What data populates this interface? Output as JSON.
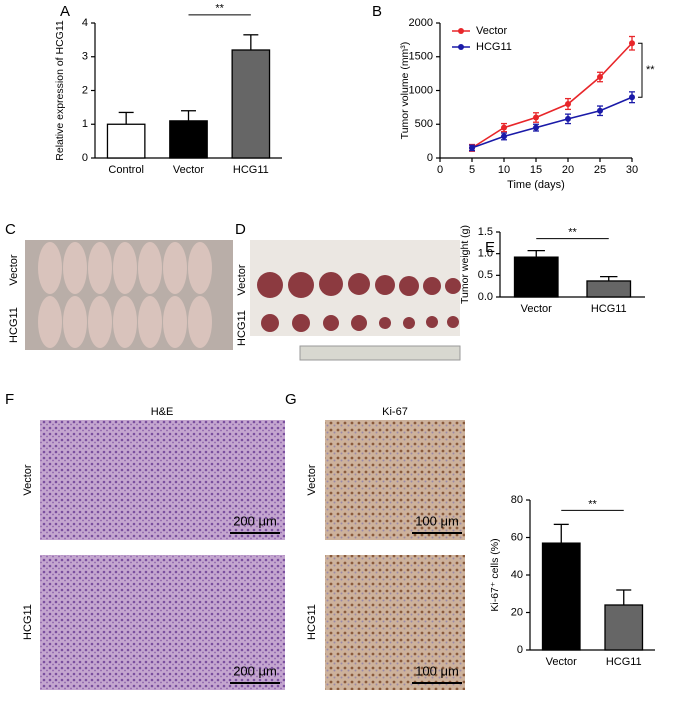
{
  "chart_data": [
    {
      "panel": "A",
      "type": "bar",
      "ylabel": "Relative expression of HCG11",
      "categories": [
        "Control",
        "Vector",
        "HCG11"
      ],
      "values": [
        1.0,
        1.1,
        3.2
      ],
      "errors": [
        0.35,
        0.3,
        0.45
      ],
      "colors": [
        "#ffffff",
        "#000000",
        "#666666"
      ],
      "ylim": [
        0,
        4
      ],
      "yticks": [
        0,
        1,
        2,
        3,
        4
      ],
      "annotation": "**"
    },
    {
      "panel": "B",
      "type": "line",
      "xlabel": "Time (days)",
      "ylabel": "Tumor volume (mm³)",
      "x": [
        5,
        10,
        15,
        20,
        25,
        30
      ],
      "series": [
        {
          "name": "Vector",
          "color": "#e8262a",
          "values": [
            150,
            450,
            600,
            800,
            1200,
            1700
          ],
          "errors": [
            50,
            60,
            70,
            80,
            70,
            100
          ]
        },
        {
          "name": "HCG11",
          "color": "#1a1aa8",
          "values": [
            150,
            320,
            450,
            580,
            700,
            900
          ],
          "errors": [
            40,
            50,
            50,
            70,
            70,
            80
          ]
        }
      ],
      "xlim": [
        0,
        30
      ],
      "xticks": [
        0,
        5,
        10,
        15,
        20,
        25,
        30
      ],
      "ylim": [
        0,
        2000
      ],
      "yticks": [
        0,
        500,
        1000,
        1500,
        2000
      ],
      "legend": "upper left",
      "annotation": "**"
    },
    {
      "panel": "E",
      "type": "bar",
      "ylabel": "Tumor weight (g)",
      "categories": [
        "Vector",
        "HCG11"
      ],
      "values": [
        0.92,
        0.37
      ],
      "errors": [
        0.15,
        0.1
      ],
      "colors": [
        "#000000",
        "#666666"
      ],
      "ylim": [
        0,
        1.5
      ],
      "yticks": [
        {
          "value": 0,
          "label": "0.0"
        },
        0.5,
        {
          "value": 1,
          "label": "1.0"
        },
        1.5
      ],
      "annotation": "**"
    },
    {
      "panel": "G",
      "type": "bar",
      "ylabel": "Ki-67⁺ cells (%)",
      "categories": [
        "Vector",
        "HCG11"
      ],
      "values": [
        57,
        24
      ],
      "errors": [
        10,
        8
      ],
      "colors": [
        "#000000",
        "#666666"
      ],
      "ylim": [
        0,
        80
      ],
      "yticks": [
        0,
        20,
        40,
        60,
        80
      ],
      "annotation": "**"
    }
  ],
  "photos": {
    "C": {
      "panel": "C",
      "rows": [
        "Vector",
        "HCG11"
      ]
    },
    "D": {
      "panel": "D",
      "rows": [
        "Vector",
        "HCG11"
      ]
    },
    "F": {
      "panel": "F",
      "title": "H&E",
      "rows": [
        "Vector",
        "HCG11"
      ],
      "scale": "200 μm"
    },
    "G": {
      "title": "Ki-67",
      "rows": [
        "Vector",
        "HCG11"
      ],
      "scale": "100 μm"
    }
  }
}
